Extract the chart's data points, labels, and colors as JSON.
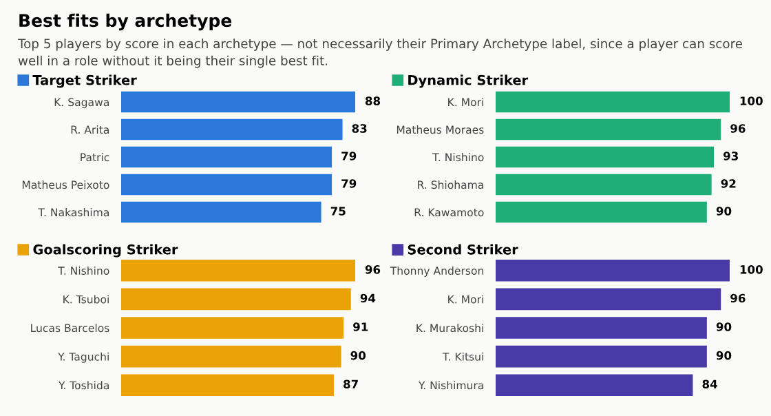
{
  "chart_data": [
    {
      "type": "bar",
      "orientation": "horizontal",
      "title": "Best fits by archetype",
      "subtitle": "Top 5 players by score in each archetype — not necessarily their Primary Archetype label, since a player can score well in a role without it being their single best fit.",
      "categories": [
        "K. Sagawa",
        "R. Arita",
        "Patric",
        "Matheus Peixoto",
        "T. Nakashima"
      ],
      "series": [
        {
          "name": "Target Striker",
          "color": "#2b78d8",
          "values": [
            88,
            83,
            79,
            79,
            75
          ]
        }
      ],
      "data_labels": true,
      "legend": "top left",
      "tick_labels": "y",
      "grid": false
    },
    {
      "type": "bar",
      "orientation": "horizontal",
      "categories": [
        "K. Mori",
        "Matheus Moraes",
        "T. Nishino",
        "R. Shiohama",
        "R. Kawamoto"
      ],
      "series": [
        {
          "name": "Dynamic Striker",
          "color": "#1fae78",
          "values": [
            100,
            96,
            93,
            92,
            90
          ]
        }
      ],
      "data_labels": true,
      "legend": "top left",
      "tick_labels": "y",
      "grid": false
    },
    {
      "type": "bar",
      "orientation": "horizontal",
      "categories": [
        "T. Nishino",
        "K. Tsuboi",
        "Lucas Barcelos",
        "Y. Taguchi",
        "Y. Toshida"
      ],
      "series": [
        {
          "name": "Goalscoring Striker",
          "color": "#eba206",
          "values": [
            96,
            94,
            91,
            90,
            87
          ]
        }
      ],
      "data_labels": true,
      "legend": "top left",
      "tick_labels": "y",
      "grid": false
    },
    {
      "type": "bar",
      "orientation": "horizontal",
      "categories": [
        "Thonny Anderson",
        "K. Mori",
        "K. Murakoshi",
        "T. Kitsui",
        "Y. Nishimura"
      ],
      "series": [
        {
          "name": "Second Striker",
          "color": "#4a3aa8",
          "values": [
            100,
            96,
            90,
            90,
            84
          ]
        }
      ],
      "data_labels": true,
      "legend": "top left",
      "tick_labels": "y",
      "grid": false
    }
  ]
}
